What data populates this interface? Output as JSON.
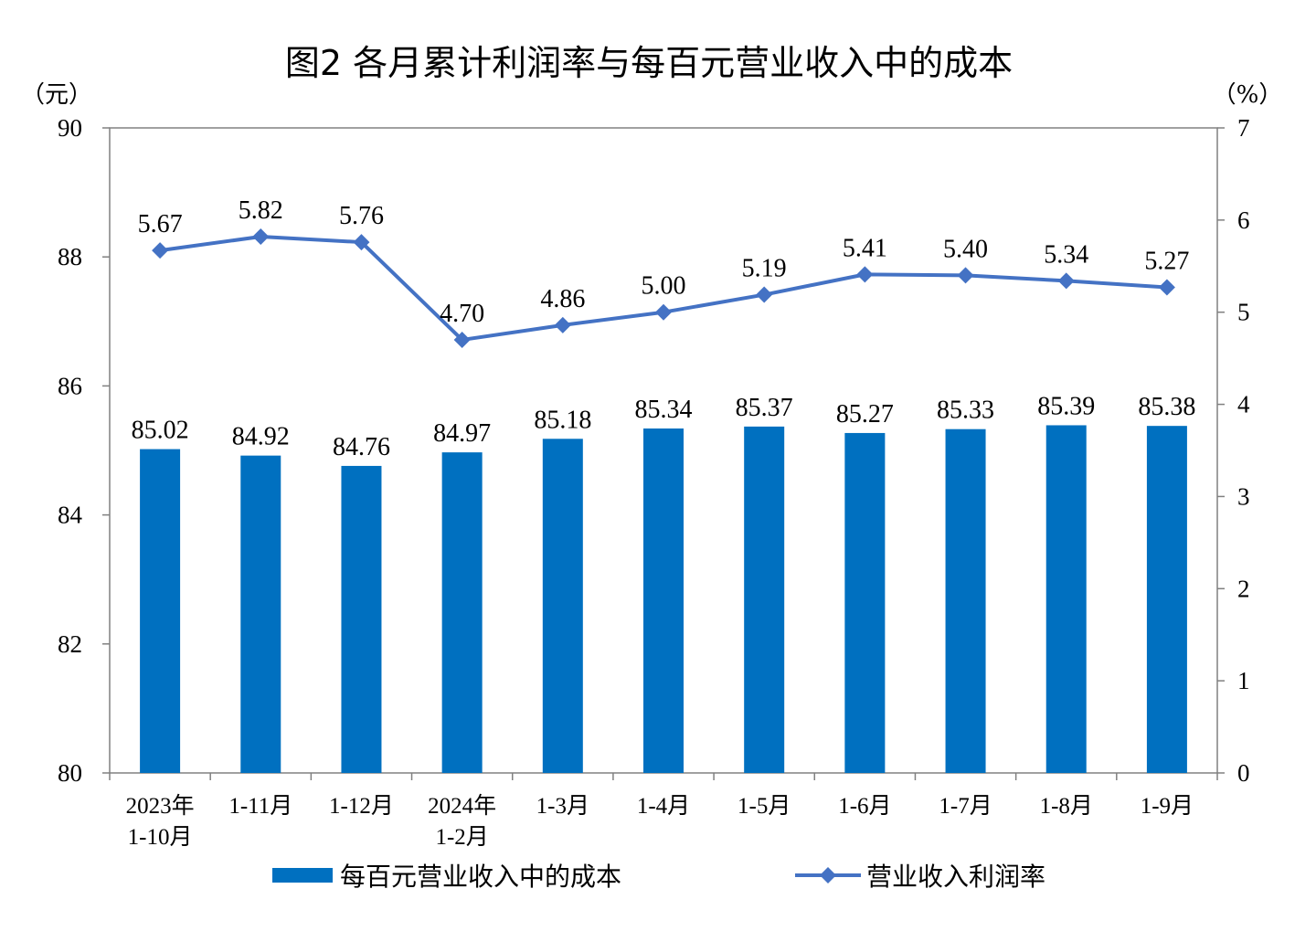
{
  "chart_data": {
    "type": "bar+line",
    "title": "图2  各月累计利润率与每百元营业收入中的成本",
    "left_unit": "（元）",
    "right_unit": "（%）",
    "categories": [
      [
        "2023年",
        "1-10月"
      ],
      [
        "1-11月"
      ],
      [
        "1-12月"
      ],
      [
        "2024年",
        "1-2月"
      ],
      [
        "1-3月"
      ],
      [
        "1-4月"
      ],
      [
        "1-5月"
      ],
      [
        "1-6月"
      ],
      [
        "1-7月"
      ],
      [
        "1-8月"
      ],
      [
        "1-9月"
      ]
    ],
    "left_axis": {
      "min": 80,
      "max": 90,
      "ticks": [
        "80",
        "82",
        "84",
        "86",
        "88",
        "90"
      ]
    },
    "right_axis": {
      "min": 0,
      "max": 7,
      "ticks": [
        "0",
        "1",
        "2",
        "3",
        "4",
        "5",
        "6",
        "7"
      ]
    },
    "series": [
      {
        "name": "每百元营业收入中的成本",
        "type": "bar",
        "axis": "left",
        "color": "#0070C0",
        "values": [
          85.02,
          84.92,
          84.76,
          84.97,
          85.18,
          85.34,
          85.37,
          85.27,
          85.33,
          85.39,
          85.38
        ],
        "labels": [
          "85.02",
          "84.92",
          "84.76",
          "84.97",
          "85.18",
          "85.34",
          "85.37",
          "85.27",
          "85.33",
          "85.39",
          "85.38"
        ]
      },
      {
        "name": "营业收入利润率",
        "type": "line",
        "axis": "right",
        "color": "#4472C4",
        "values": [
          5.67,
          5.82,
          5.76,
          4.7,
          4.86,
          5.0,
          5.19,
          5.41,
          5.4,
          5.34,
          5.27
        ],
        "labels": [
          "5.67",
          "5.82",
          "5.76",
          "4.70",
          "4.86",
          "5.00",
          "5.19",
          "5.41",
          "5.40",
          "5.34",
          "5.27"
        ]
      }
    ],
    "legend_position": "bottom"
  }
}
